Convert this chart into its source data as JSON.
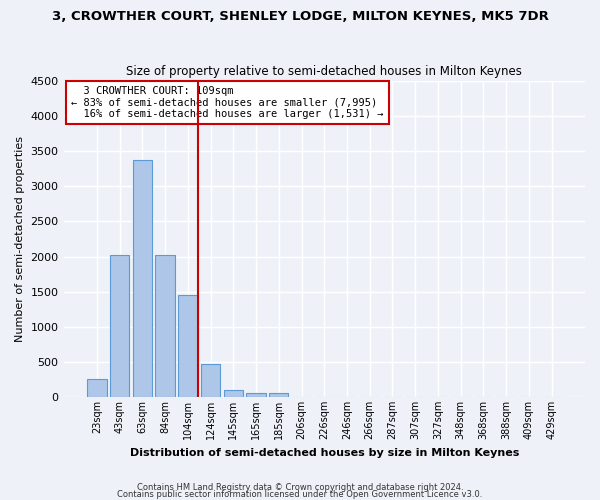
{
  "title": "3, CROWTHER COURT, SHENLEY LODGE, MILTON KEYNES, MK5 7DR",
  "subtitle": "Size of property relative to semi-detached houses in Milton Keynes",
  "xlabel": "Distribution of semi-detached houses by size in Milton Keynes",
  "ylabel": "Number of semi-detached properties",
  "bar_labels": [
    "23sqm",
    "43sqm",
    "63sqm",
    "84sqm",
    "104sqm",
    "124sqm",
    "145sqm",
    "165sqm",
    "185sqm",
    "206sqm",
    "226sqm",
    "246sqm",
    "266sqm",
    "287sqm",
    "307sqm",
    "327sqm",
    "348sqm",
    "368sqm",
    "388sqm",
    "409sqm",
    "429sqm"
  ],
  "bar_values": [
    250,
    2020,
    3370,
    2020,
    1460,
    470,
    100,
    60,
    60,
    0,
    0,
    0,
    0,
    0,
    0,
    0,
    0,
    0,
    0,
    0,
    0
  ],
  "bar_color": "#aec6e8",
  "bar_edge_color": "#5b9bd5",
  "property_label": "3 CROWTHER COURT: 109sqm",
  "pct_smaller": 83,
  "n_smaller": 7995,
  "pct_larger": 16,
  "n_larger": 1531,
  "vline_color": "#cc0000",
  "vline_x_index": 4.43,
  "annotation_box_color": "#cc0000",
  "ylim": [
    0,
    4500
  ],
  "yticks": [
    0,
    500,
    1000,
    1500,
    2000,
    2500,
    3000,
    3500,
    4000,
    4500
  ],
  "footnote1": "Contains HM Land Registry data © Crown copyright and database right 2024.",
  "footnote2": "Contains public sector information licensed under the Open Government Licence v3.0.",
  "background_color": "#eef2f8",
  "plot_bg_color": "#eef2f8",
  "grid_color": "#ffffff",
  "title_fontsize": 9.5,
  "subtitle_fontsize": 8.5,
  "xlabel_fontsize": 8,
  "ylabel_fontsize": 8
}
